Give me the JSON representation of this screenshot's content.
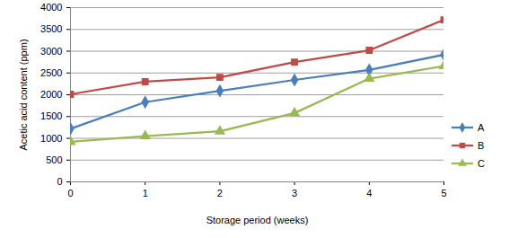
{
  "chart_data": {
    "type": "line",
    "x_label": "Storage period (weeks)",
    "y_label": "Acetic acid content (ppm)",
    "x": [
      0,
      1,
      2,
      3,
      4,
      5
    ],
    "xlim": [
      0,
      5
    ],
    "xticks": [
      0,
      1,
      2,
      3,
      4,
      5
    ],
    "ylim": [
      0,
      4000
    ],
    "yticks": [
      0,
      500,
      1000,
      1500,
      2000,
      2500,
      3000,
      3500,
      4000
    ],
    "grid": true,
    "legend": "right",
    "series": [
      {
        "name": "A",
        "color": "#4a7ebb",
        "marker": "diamond",
        "values": [
          1220,
          1830,
          2090,
          2340,
          2570,
          2920
        ]
      },
      {
        "name": "B",
        "color": "#be4b48",
        "marker": "square",
        "values": [
          2010,
          2300,
          2400,
          2750,
          3020,
          3720
        ]
      },
      {
        "name": "C",
        "color": "#98b954",
        "marker": "triangle",
        "values": [
          920,
          1050,
          1160,
          1580,
          2370,
          2660
        ]
      }
    ]
  }
}
